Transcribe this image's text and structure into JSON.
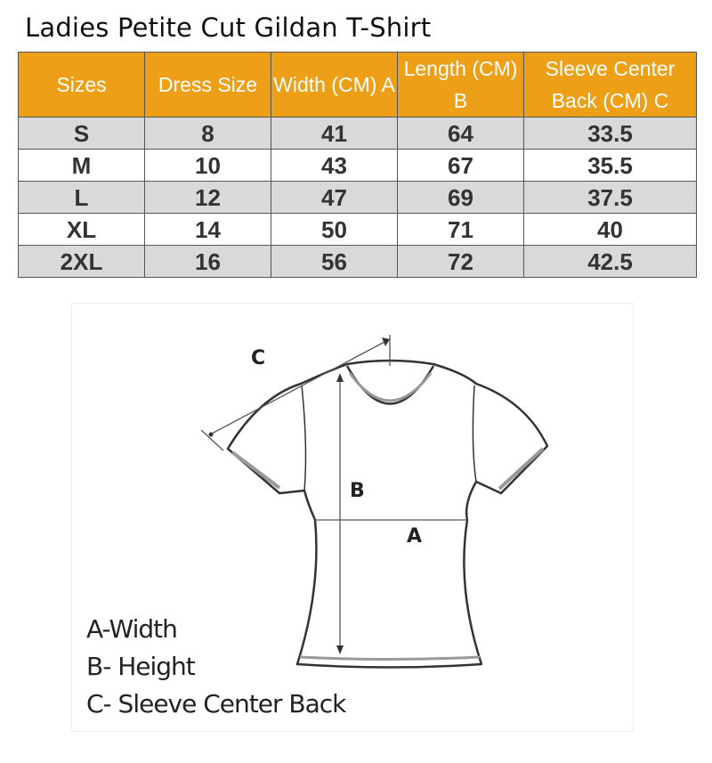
{
  "title": "Ladies Petite Cut Gildan T-Shirt",
  "colors": {
    "header_bg": "#EC9F17",
    "alt_row": "#d9d9d9"
  },
  "table": {
    "headers": [
      "Sizes",
      "Dress Size",
      "Width (CM) A",
      "Length (CM) B",
      "Sleeve Center Back (CM) C"
    ],
    "rows": [
      [
        "S",
        "8",
        "41",
        "64",
        "33.5"
      ],
      [
        "M",
        "10",
        "43",
        "67",
        "35.5"
      ],
      [
        "L",
        "12",
        "47",
        "69",
        "37.5"
      ],
      [
        "XL",
        "14",
        "50",
        "71",
        "40"
      ],
      [
        "2XL",
        "16",
        "56",
        "72",
        "42.5"
      ]
    ]
  },
  "diagram": {
    "labels": {
      "a": "A",
      "b": "B",
      "c": "C"
    },
    "legend": [
      "A-Width",
      "B- Height",
      "C- Sleeve Center Back"
    ]
  }
}
